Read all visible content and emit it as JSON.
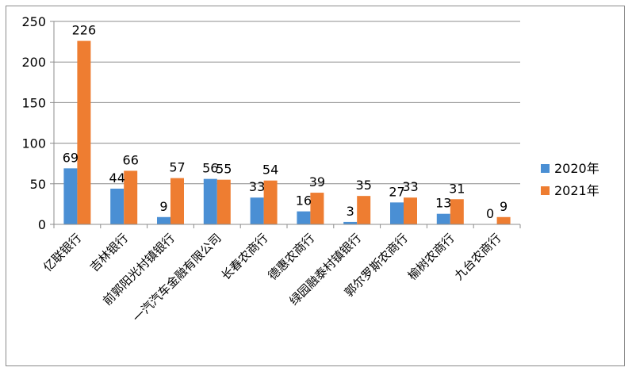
{
  "chart_data": {
    "type": "bar",
    "categories": [
      "亿联银行",
      "吉林银行",
      "前郭阳光村镇银行",
      "一汽汽车金融有限公司",
      "长春农商行",
      "德惠农商行",
      "绿园融泰村镇银行",
      "郭尔罗斯农商行",
      "榆树农商行",
      "九台农商行"
    ],
    "series": [
      {
        "name": "2020年",
        "values": [
          69,
          44,
          9,
          56,
          33,
          16,
          3,
          27,
          13,
          0
        ],
        "color": "#4a8fd4"
      },
      {
        "name": "2021年",
        "values": [
          226,
          66,
          57,
          55,
          54,
          39,
          35,
          33,
          31,
          9
        ],
        "color": "#ee7d31"
      }
    ],
    "ylim": [
      0,
      250
    ],
    "yticks": [
      0,
      50,
      100,
      150,
      200,
      250
    ],
    "grid": true,
    "legend_position": "right",
    "title": "",
    "xlabel": "",
    "ylabel": ""
  }
}
